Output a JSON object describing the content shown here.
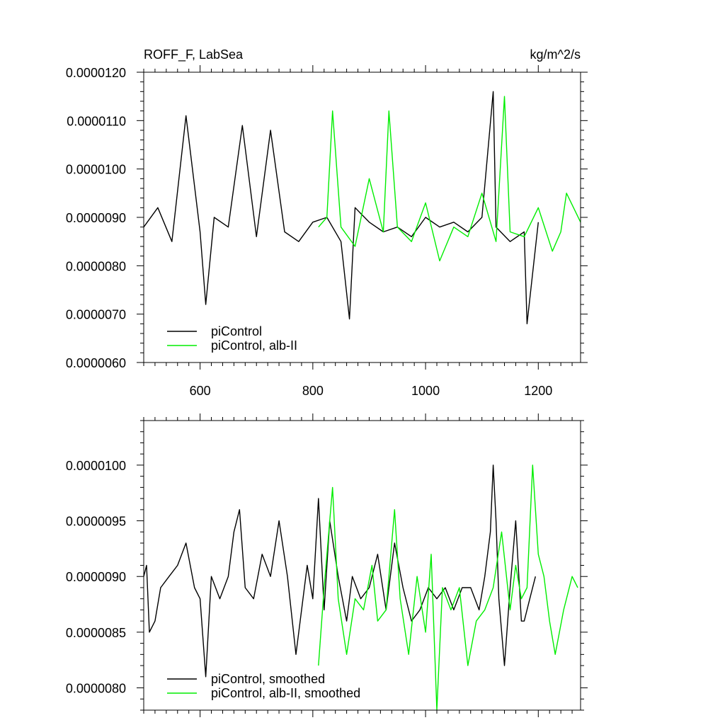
{
  "chart_data": [
    {
      "type": "line",
      "title_left": "ROFF_F, LabSea",
      "title_right": "kg/m^2/s",
      "xlim": [
        500,
        1275
      ],
      "ylim": [
        6e-06,
        1.2e-05
      ],
      "x_ticks": [
        600,
        800,
        1000,
        1200
      ],
      "x_tick_labels": [
        "600",
        "800",
        "1000",
        "1200"
      ],
      "y_ticks": [
        6e-06,
        7e-06,
        8e-06,
        9e-06,
        1e-05,
        1.1e-05,
        1.2e-05
      ],
      "y_tick_labels": [
        "0.0000060",
        "0.0000070",
        "0.0000080",
        "0.0000090",
        "0.0000100",
        "0.0000110",
        "0.0000120"
      ],
      "legend_position": "bottom-left",
      "series": [
        {
          "name": "piControl",
          "color": "#000000",
          "x": [
            500,
            525,
            550,
            575,
            600,
            610,
            625,
            650,
            675,
            700,
            725,
            750,
            775,
            800,
            825,
            850,
            865,
            875,
            900,
            925,
            950,
            975,
            1000,
            1025,
            1050,
            1075,
            1100,
            1120,
            1125,
            1150,
            1175,
            1180,
            1200
          ],
          "values": [
            8.8e-06,
            9.2e-06,
            8.5e-06,
            1.11e-05,
            8.7e-06,
            7.2e-06,
            9e-06,
            8.8e-06,
            1.09e-05,
            8.6e-06,
            1.08e-05,
            8.7e-06,
            8.5e-06,
            8.9e-06,
            9e-06,
            8.5e-06,
            6.9e-06,
            9.2e-06,
            8.9e-06,
            8.7e-06,
            8.8e-06,
            8.6e-06,
            9e-06,
            8.8e-06,
            8.9e-06,
            8.7e-06,
            9e-06,
            1.16e-05,
            8.8e-06,
            8.5e-06,
            8.7e-06,
            6.8e-06,
            8.9e-06
          ]
        },
        {
          "name": "piControl, alb-II",
          "color": "#00ee00",
          "x": [
            810,
            825,
            835,
            850,
            875,
            900,
            925,
            935,
            950,
            975,
            1000,
            1025,
            1050,
            1075,
            1100,
            1125,
            1140,
            1150,
            1175,
            1200,
            1225,
            1240,
            1250,
            1275
          ],
          "values": [
            8.8e-06,
            9e-06,
            1.12e-05,
            8.8e-06,
            8.4e-06,
            9.8e-06,
            8.7e-06,
            1.12e-05,
            8.8e-06,
            8.5e-06,
            9.3e-06,
            8.1e-06,
            8.8e-06,
            8.6e-06,
            9.5e-06,
            8.5e-06,
            1.15e-05,
            8.7e-06,
            8.6e-06,
            9.2e-06,
            8.3e-06,
            8.7e-06,
            9.5e-06,
            8.9e-06
          ]
        }
      ]
    },
    {
      "type": "line",
      "xlim": [
        500,
        1275
      ],
      "ylim": [
        7.8e-06,
        1.04e-05
      ],
      "x_ticks": [
        600,
        800,
        1000,
        1200
      ],
      "y_ticks": [
        8e-06,
        8.5e-06,
        9e-06,
        9.5e-06,
        1e-05
      ],
      "y_tick_labels": [
        "0.0000080",
        "0.0000085",
        "0.0000090",
        "0.0000095",
        "0.0000100"
      ],
      "legend_position": "bottom-left",
      "series": [
        {
          "name": "piControl, smoothed",
          "color": "#000000",
          "x": [
            500,
            505,
            510,
            520,
            530,
            545,
            560,
            575,
            590,
            600,
            610,
            620,
            635,
            650,
            660,
            670,
            680,
            695,
            710,
            725,
            740,
            755,
            770,
            790,
            800,
            810,
            820,
            830,
            845,
            860,
            870,
            885,
            900,
            915,
            930,
            945,
            960,
            975,
            990,
            1005,
            1020,
            1035,
            1050,
            1065,
            1080,
            1095,
            1105,
            1115,
            1120,
            1125,
            1130,
            1140,
            1150,
            1160,
            1170,
            1175,
            1185,
            1195
          ],
          "values": [
            9e-06,
            9.1e-06,
            8.5e-06,
            8.6e-06,
            8.9e-06,
            9e-06,
            9.1e-06,
            9.3e-06,
            8.9e-06,
            8.8e-06,
            8.1e-06,
            9e-06,
            8.8e-06,
            9e-06,
            9.4e-06,
            9.6e-06,
            8.9e-06,
            8.8e-06,
            9.2e-06,
            9e-06,
            9.5e-06,
            9e-06,
            8.3e-06,
            9.1e-06,
            8.8e-06,
            9.7e-06,
            8.7e-06,
            9.5e-06,
            9e-06,
            8.6e-06,
            9e-06,
            8.8e-06,
            8.9e-06,
            9.2e-06,
            8.7e-06,
            9.3e-06,
            8.9e-06,
            8.6e-06,
            8.7e-06,
            8.9e-06,
            8.8e-06,
            8.9e-06,
            8.7e-06,
            8.9e-06,
            8.9e-06,
            8.7e-06,
            9e-06,
            9.4e-06,
            1e-05,
            9.5e-06,
            8.8e-06,
            8.2e-06,
            8.9e-06,
            9.5e-06,
            8.6e-06,
            8.6e-06,
            8.8e-06,
            9e-06
          ]
        },
        {
          "name": "piControl, alb-II, smoothed",
          "color": "#00ee00",
          "x": [
            810,
            820,
            835,
            845,
            860,
            875,
            890,
            905,
            915,
            930,
            945,
            955,
            970,
            985,
            1000,
            1010,
            1020,
            1030,
            1045,
            1060,
            1075,
            1090,
            1105,
            1120,
            1135,
            1150,
            1160,
            1170,
            1180,
            1190,
            1200,
            1210,
            1220,
            1230,
            1245,
            1260,
            1270
          ],
          "values": [
            8.2e-06,
            8.9e-06,
            9.8e-06,
            8.8e-06,
            8.3e-06,
            8.8e-06,
            8.7e-06,
            9.1e-06,
            8.6e-06,
            8.7e-06,
            9.6e-06,
            8.8e-06,
            8.3e-06,
            9e-06,
            8.5e-06,
            9.2e-06,
            7.8e-06,
            8.9e-06,
            8.7e-06,
            8.9e-06,
            8.2e-06,
            8.6e-06,
            8.7e-06,
            8.9e-06,
            9.4e-06,
            8.7e-06,
            9.1e-06,
            8.8e-06,
            8.9e-06,
            1e-05,
            9.2e-06,
            9e-06,
            8.6e-06,
            8.3e-06,
            8.7e-06,
            9e-06,
            8.9e-06
          ]
        }
      ]
    }
  ]
}
